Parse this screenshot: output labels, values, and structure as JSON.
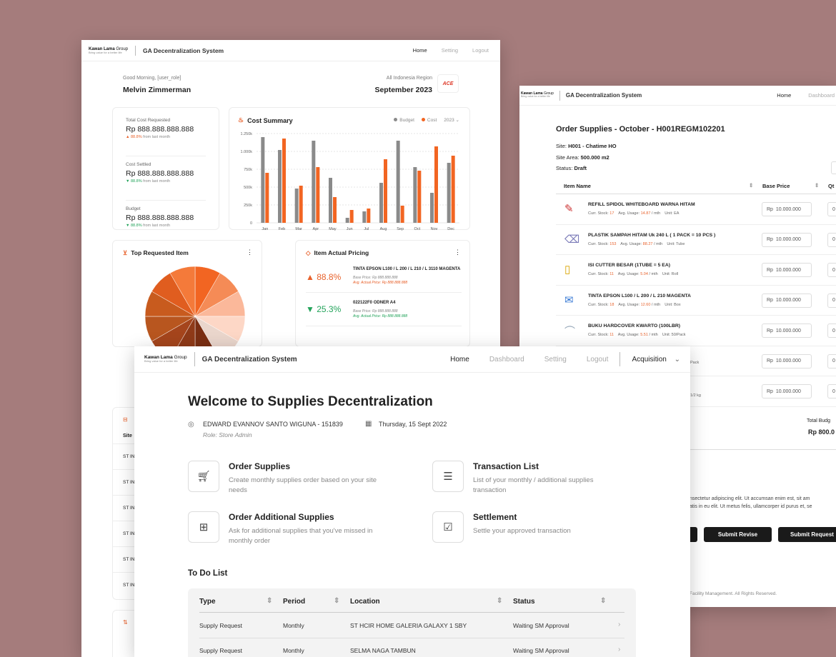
{
  "brand": {
    "name": "Kawan Lama",
    "group": "Group",
    "tagline": "Bring value for a better life",
    "app": "GA Decentralization System"
  },
  "w1": {
    "nav": {
      "home": "Home",
      "setting": "Setting",
      "logout": "Logout"
    },
    "greeting": "Good Morning, [user_role]",
    "user": "Melvin Zimmerman",
    "region": "All Indonesia Region",
    "period": "September 2023",
    "ace": "ACE",
    "stats": [
      {
        "label": "Total Cost Requested",
        "value": "Rp 888.888.888.888",
        "change": "88.8%",
        "note": "from last month",
        "dir": "up"
      },
      {
        "label": "Cost Settled",
        "value": "Rp 888.888.888.888",
        "change": "88.8%",
        "note": "from last month",
        "dir": "down"
      },
      {
        "label": "Budget",
        "value": "Rp 888.888.888.888",
        "change": "88.8%",
        "note": "from last month",
        "dir": "down"
      }
    ],
    "cost_title": "Cost Summary",
    "legend_budget": "Budget",
    "legend_cost": "Cost",
    "year": "2023",
    "top_title": "Top Requested Item",
    "pricing_title": "Item Actual Pricing",
    "pricing": [
      {
        "pct": "88.8%",
        "dir": "up",
        "name": "TINTA EPSON L100 / L 200 / L 210 / L 3110 MAGENTA",
        "base": "Base Price: Rp 888.888.888",
        "actual": "Avg. Actual Price: Rp 888.888.888"
      },
      {
        "pct": "25.3%",
        "dir": "down",
        "name": "022122F0 ODNER A4",
        "base": "Base Price: Rp 888.888.888",
        "actual": "Avg. Actual Price: Rp 888.888.888"
      }
    ],
    "site_head": "Site",
    "site_rows": [
      "ST IN",
      "ST IN",
      "ST IN",
      "ST IN",
      "ST IN",
      "ST IN"
    ]
  },
  "chart_data": {
    "type": "bar",
    "categories": [
      "Jan",
      "Feb",
      "Mar",
      "Apr",
      "May",
      "Jun",
      "Jul",
      "Aug",
      "Sep",
      "Oct",
      "Nov",
      "Dec"
    ],
    "ylim": [
      0,
      1250000
    ],
    "ticks": [
      "0",
      "250k",
      "500k",
      "750k",
      "1.000k",
      "1.250k"
    ],
    "series": [
      {
        "name": "Budget",
        "color": "#8a8a8a",
        "values": [
          1200000,
          1020000,
          480000,
          1150000,
          630000,
          70000,
          160000,
          560000,
          1150000,
          780000,
          420000,
          840000
        ]
      },
      {
        "name": "Cost",
        "color": "#f26522",
        "values": [
          700000,
          1180000,
          520000,
          780000,
          360000,
          180000,
          200000,
          890000,
          240000,
          730000,
          1070000,
          940000
        ]
      }
    ]
  },
  "w2": {
    "nav": {
      "home": "Home",
      "dashboard": "Dashboard"
    },
    "title": "Order Supplies - October - H001REGM102201",
    "site_label": "Site:",
    "site": "H001 - Chatime HO",
    "area_label": "Site Area:",
    "area": "500.000 m2",
    "status_label": "Status:",
    "status": "Draft",
    "cols": {
      "item": "Item Name",
      "price": "Base Price",
      "qty": "Qt"
    },
    "items": [
      {
        "name": "REFILL SPIDOL WHITEBOARD WARNA HITAM",
        "stock": "17",
        "usage": "14.87",
        "unit": "EA",
        "price": "10.000.000"
      },
      {
        "name": "PLASTIK SAMPAH HITAM Uk 240 L ( 1 PACK = 10 PCS )",
        "stock": "153",
        "usage": "88.27",
        "unit": "Tube",
        "price": "10.000.000"
      },
      {
        "name": "ISI CUTTER BESAR (1TUBE = 5 EA)",
        "stock": "11",
        "usage": "5.04",
        "unit": "Roll",
        "price": "10.000.000"
      },
      {
        "name": "TINTA EPSON L100 / L 200 / L 210 MAGENTA",
        "stock": "18",
        "usage": "12.60",
        "unit": "Box",
        "price": "10.000.000"
      },
      {
        "name": "BUKU HARDCOVER KWARTO (100LBR)",
        "stock": "11",
        "usage": "5.51",
        "unit": "50/Pack",
        "price": "10.000.000"
      }
    ],
    "row6_unit": "Pack",
    "row6_price": "10.000.000",
    "row7_unit": "1/2 kg",
    "row7_price": "10.000.000",
    "stock_label": "Curr. Stock:",
    "usage_label": "Avg. Usage:",
    "usage_suffix": "/ mth",
    "unit_label": "Unit:",
    "rp": "Rp",
    "qty_val": "0",
    "total_label": "Total Budg",
    "total_value": "Rp 800.0",
    "notes": [
      "nsectetur adipiscing elit. Ut accumsan enim est, sit am",
      "atis in eu elit. Ut metus felis, ullamcorper id purus et, se"
    ],
    "submit_revise": "Submit Revise",
    "submit_request": "Submit Request",
    "footer": "Facility Management. All Rights Reserved."
  },
  "w3": {
    "nav": {
      "home": "Home",
      "dashboard": "Dashboard",
      "setting": "Setting",
      "logout": "Logout",
      "acquisition": "Acquisition"
    },
    "welcome": "Welcome to Supplies Decentralization",
    "user": "EDWARD EVANNOV SANTO WIGUNA - 151839",
    "role": "Role: Store Admin",
    "date": "Thursday, 15 Sept 2022",
    "menu": [
      {
        "title": "Order Supplies",
        "desc": "Create monthly supplies order based on your site needs"
      },
      {
        "title": "Transaction List",
        "desc": "List of your monthly /  additional supplies transaction"
      },
      {
        "title": "Order Additional Supplies",
        "desc": "Ask for additional supplies that you've missed in monthly order"
      },
      {
        "title": "Settlement",
        "desc": "Settle your approved transaction"
      }
    ],
    "todo": "To Do List",
    "cols": [
      "Type",
      "Period",
      "Location",
      "Status"
    ],
    "rows": [
      {
        "type": "Supply Request",
        "period": "Monthly",
        "location": "ST HCIR HOME GALERIA GALAXY 1 SBY",
        "status": "Waiting SM Approval"
      },
      {
        "type": "Supply Request",
        "period": "Monthly",
        "location": "SELMA NAGA TAMBUN",
        "status": "Waiting SM Approval"
      }
    ]
  }
}
